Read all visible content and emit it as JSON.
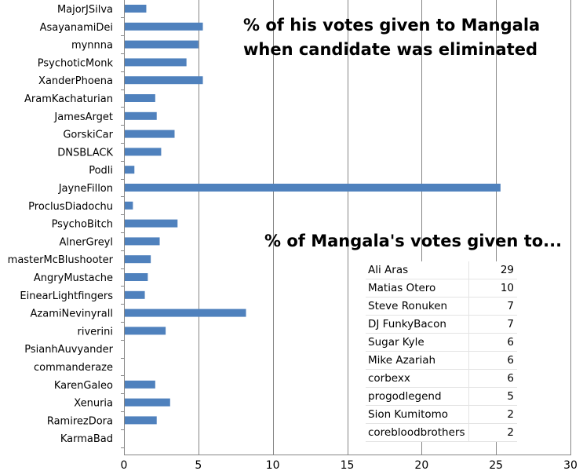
{
  "chart_data": {
    "type": "bar",
    "orientation": "horizontal",
    "title": "% of his votes given to Mangala when candidate was eliminated",
    "title_lines": [
      "% of his votes given to Mangala",
      "when candidate was eliminated"
    ],
    "categories": [
      "MajorJSilva",
      "AsayanamiDei",
      "mynnna",
      "PsychoticMonk",
      "XanderPhoena",
      "AramKachaturian",
      "JamesArget",
      "GorskiCar",
      "DNSBLACK",
      "Podli",
      "JayneFillon",
      "ProclusDiadochu",
      "PsychoBitch",
      "AlnerGreyl",
      "masterMcBlushooter",
      "AngryMustache",
      "EinearLightfingers",
      "AzamiNevinyrall",
      "riverini",
      "PsianhAuvyander",
      "commanderaze",
      "KarenGaleo",
      "Xenuria",
      "RamirezDora",
      "KarmaBad"
    ],
    "values": [
      1.5,
      5.3,
      5.0,
      4.2,
      5.3,
      2.1,
      2.2,
      3.4,
      2.5,
      0.7,
      25.3,
      0.6,
      3.6,
      2.4,
      1.8,
      1.6,
      1.4,
      8.2,
      2.8,
      0,
      0,
      2.1,
      3.1,
      2.2,
      0
    ],
    "xlim": [
      0,
      30
    ],
    "xticks": [
      "0",
      "5",
      "10",
      "15",
      "20",
      "25",
      "30"
    ],
    "grid": "vertical",
    "color": "#4f81bd"
  },
  "table": {
    "title": "% of Mangala's votes given to...",
    "rows": [
      {
        "name": "Ali Aras",
        "value": "29"
      },
      {
        "name": "Matias Otero",
        "value": "10"
      },
      {
        "name": "Steve Ronuken",
        "value": "7"
      },
      {
        "name": "DJ FunkyBacon",
        "value": "7"
      },
      {
        "name": "Sugar Kyle",
        "value": "6"
      },
      {
        "name": "Mike Azariah",
        "value": "6"
      },
      {
        "name": "corbexx",
        "value": "6"
      },
      {
        "name": "progodlegend",
        "value": "5"
      },
      {
        "name": "Sion Kumitomo",
        "value": "2"
      },
      {
        "name": "corebloodbrothers",
        "value": "2"
      }
    ]
  }
}
